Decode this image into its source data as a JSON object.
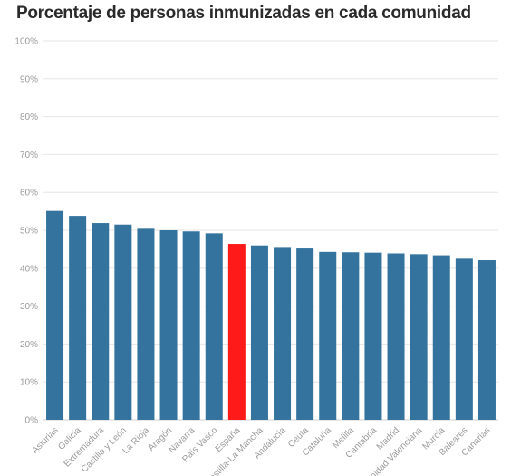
{
  "chart_data": {
    "type": "bar",
    "title": "Porcentaje de personas inmunizadas en cada comunidad",
    "xlabel": "",
    "ylabel": "",
    "ylim": [
      0,
      100
    ],
    "yticks": [
      "0%",
      "10%",
      "20%",
      "30%",
      "40%",
      "50%",
      "60%",
      "70%",
      "80%",
      "90%",
      "100%"
    ],
    "grid": true,
    "legend": "none",
    "colors": {
      "default": "#33739e",
      "highlight": "#ff1a1a"
    },
    "highlight_category": "España",
    "categories": [
      "Asturias",
      "Galicia",
      "Extremadura",
      "Castilla y León",
      "La Rioja",
      "Aragón",
      "Navarra",
      "País Vasco",
      "España",
      "Castilla-La Mancha",
      "Andalucía",
      "Ceuta",
      "Cataluña",
      "Melilla",
      "Cantabria",
      "Madrid",
      "Comunidad Valenciana",
      "Murcia",
      "Baleares",
      "Canarias"
    ],
    "values": [
      55.1,
      53.8,
      51.9,
      51.5,
      50.4,
      50.0,
      49.7,
      49.2,
      46.4,
      46.0,
      45.6,
      45.2,
      44.3,
      44.2,
      44.1,
      43.9,
      43.7,
      43.4,
      42.5,
      42.1
    ]
  }
}
